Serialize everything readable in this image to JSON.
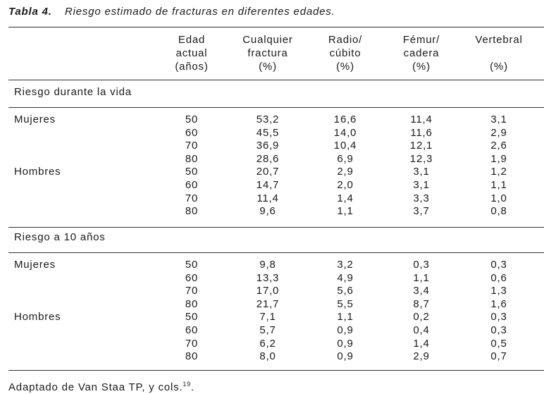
{
  "caption": {
    "label": "Tabla 4.",
    "title": "Riesgo estimado de fracturas en diferentes edades."
  },
  "table": {
    "headers": [
      [
        "Edad",
        "actual",
        "(años)"
      ],
      [
        "Cualquier",
        "fractura",
        "(%)"
      ],
      [
        "Radio/",
        "cúbito",
        "(%)"
      ],
      [
        "Fémur/",
        "cadera",
        "(%)"
      ],
      [
        "Vertebral",
        "(%)"
      ]
    ],
    "sections": [
      {
        "title": "Riesgo durante la vida",
        "groups": [
          {
            "label": "Mujeres",
            "rows": [
              [
                "50",
                "53,2",
                "16,6",
                "11,4",
                "3,1"
              ],
              [
                "60",
                "45,5",
                "14,0",
                "11,6",
                "2,9"
              ],
              [
                "70",
                "36,9",
                "10,4",
                "12,1",
                "2,6"
              ],
              [
                "80",
                "28,6",
                "6,9",
                "12,3",
                "1,9"
              ]
            ]
          },
          {
            "label": "Hombres",
            "rows": [
              [
                "50",
                "20,7",
                "2,9",
                "3,1",
                "1,2"
              ],
              [
                "60",
                "14,7",
                "2,0",
                "3,1",
                "1,1"
              ],
              [
                "70",
                "11,4",
                "1,4",
                "3,3",
                "1,0"
              ],
              [
                "80",
                "9,6",
                "1,1",
                "3,7",
                "0,8"
              ]
            ]
          }
        ]
      },
      {
        "title": "Riesgo a 10 años",
        "groups": [
          {
            "label": "Mujeres",
            "rows": [
              [
                "50",
                "9,8",
                "3,2",
                "0,3",
                "0,3"
              ],
              [
                "60",
                "13,3",
                "4,9",
                "1,1",
                "0,6"
              ],
              [
                "70",
                "17,0",
                "5,6",
                "3,4",
                "1,3"
              ],
              [
                "80",
                "21,7",
                "5,5",
                "8,7",
                "1,6"
              ]
            ]
          },
          {
            "label": "Hombres",
            "rows": [
              [
                "50",
                "7,1",
                "1,1",
                "0,2",
                "0,3"
              ],
              [
                "60",
                "5,7",
                "0,9",
                "0,4",
                "0,3"
              ],
              [
                "70",
                "6,2",
                "0,9",
                "1,4",
                "0,5"
              ],
              [
                "80",
                "8,0",
                "0,9",
                "2,9",
                "0,7"
              ]
            ]
          }
        ]
      }
    ]
  },
  "footer": {
    "text": "Adaptado de Van Staa TP, y cols.",
    "ref": "19"
  }
}
